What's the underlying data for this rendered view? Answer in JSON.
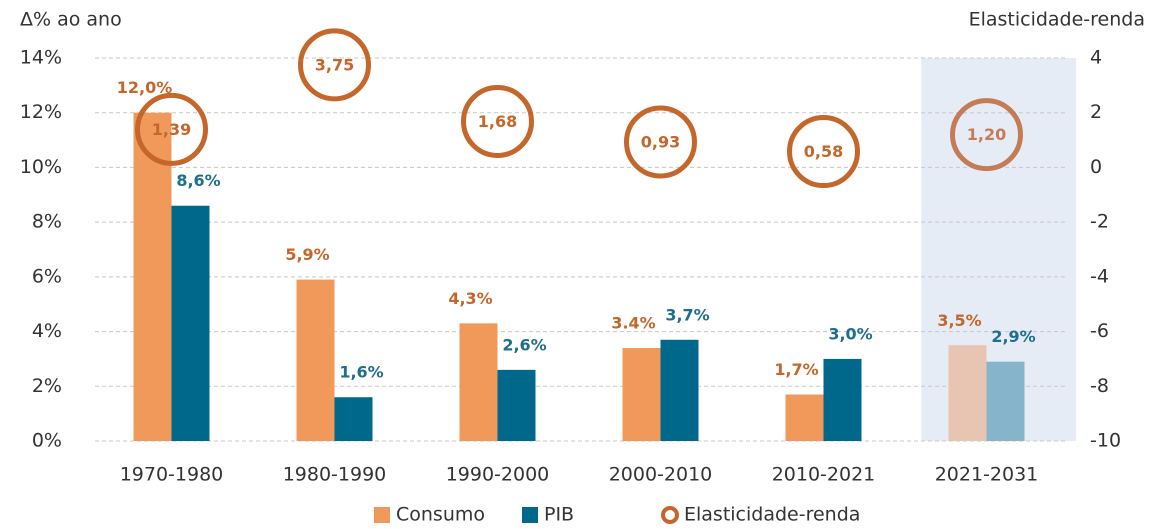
{
  "chart_data": {
    "type": "bar",
    "y_axis_title": "Δ% ao ano",
    "y2_axis_title": "Elasticidade-renda",
    "categories": [
      "1970-1980",
      "1980-1990",
      "1990-2000",
      "2000-2010",
      "2010-2021",
      "2021-2031"
    ],
    "series": [
      {
        "name": "Consumo",
        "type": "bar",
        "color": "#f0995a",
        "highlight_color": "#e8c5b3",
        "label_color": "#c5662a",
        "values": [
          12.0,
          5.9,
          4.3,
          3.4,
          1.7,
          3.5
        ],
        "value_labels": [
          "12,0%",
          "5,9%",
          "4,3%",
          "3.4%",
          "1,7%",
          "3,5%"
        ]
      },
      {
        "name": "PIB",
        "type": "bar",
        "color": "#00688b",
        "highlight_color": "#86b4cb",
        "label_color": "#1f6e8f",
        "values": [
          8.6,
          1.6,
          2.6,
          3.7,
          3.0,
          2.9
        ],
        "value_labels": [
          "8,6%",
          "1,6%",
          "2,6%",
          "3,7%",
          "3,0%",
          "2,9%"
        ]
      },
      {
        "name": "Elasticidade-renda",
        "type": "circle",
        "axis": "y2",
        "color": "#c5662a",
        "highlight_color": "#c47c57",
        "label_color": "#c5662a",
        "values": [
          1.39,
          3.75,
          1.68,
          0.93,
          0.58,
          1.2
        ],
        "value_labels": [
          "1,39",
          "3,75",
          "1,68",
          "0,93",
          "0,58",
          "1,20"
        ]
      }
    ],
    "highlight_index": 5,
    "highlight_background": "#e6ecf5",
    "ylim": [
      0,
      14
    ],
    "yticks": [
      {
        "value": 0,
        "label": "0%"
      },
      {
        "value": 2,
        "label": "2%"
      },
      {
        "value": 4,
        "label": "4%"
      },
      {
        "value": 6,
        "label": "6%"
      },
      {
        "value": 8,
        "label": "8%"
      },
      {
        "value": 10,
        "label": "10%"
      },
      {
        "value": 12,
        "label": "12%"
      },
      {
        "value": 14,
        "label": "14%"
      }
    ],
    "y2lim": [
      -10,
      4
    ],
    "y2ticks": [
      -10,
      -8,
      -6,
      -4,
      -2,
      0,
      2,
      4
    ],
    "grid": true,
    "legend": "bottom"
  }
}
